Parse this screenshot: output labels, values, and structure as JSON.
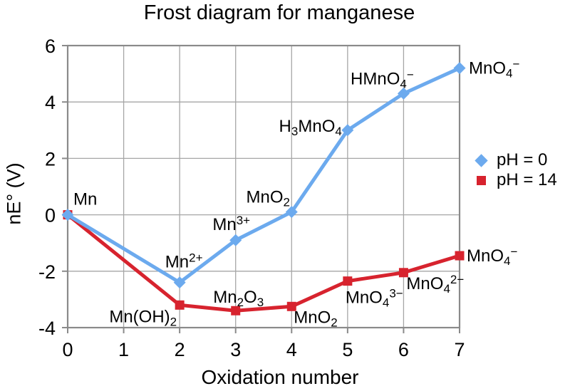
{
  "page": {
    "background": "#ffffff"
  },
  "chart_data": {
    "type": "line",
    "title": "Frost diagram for manganese",
    "xlabel": "Oxidation number",
    "ylabel": "nE° (V)",
    "xlim": [
      0,
      7
    ],
    "ylim": [
      -4,
      6
    ],
    "xticks": [
      0,
      1,
      2,
      3,
      4,
      5,
      6,
      7
    ],
    "yticks": [
      -4,
      -2,
      0,
      2,
      4,
      6
    ],
    "grid": true,
    "legend_position": "right",
    "colors": {
      "grid": "#a6a6a6",
      "border": "#8a8a8a",
      "text": "#000000",
      "background": "#ffffff"
    },
    "series": [
      {
        "name": "pH = 0",
        "color": "#6caaee",
        "marker": "diamond",
        "points": [
          {
            "x": 0,
            "y": 0,
            "label": {
              "parts": [
                {
                  "t": "Mn"
                }
              ],
              "anchor": "start",
              "dx": 8,
              "dy": -14
            }
          },
          {
            "x": 2,
            "y": -2.4,
            "label": {
              "parts": [
                {
                  "t": "Mn"
                },
                {
                  "t": "2+",
                  "sup": true
                }
              ],
              "anchor": "middle",
              "dx": 6,
              "dy": -21
            }
          },
          {
            "x": 3,
            "y": -0.9,
            "label": {
              "parts": [
                {
                  "t": "Mn"
                },
                {
                  "t": "3+",
                  "sup": true
                }
              ],
              "anchor": "middle",
              "dx": -6,
              "dy": -14
            }
          },
          {
            "x": 4,
            "y": 0.1,
            "label": {
              "parts": [
                {
                  "t": "MnO"
                },
                {
                  "t": "2",
                  "sub": true
                }
              ],
              "anchor": "middle",
              "dx": -33,
              "dy": -13
            }
          },
          {
            "x": 5,
            "y": 3.0,
            "label": {
              "parts": [
                {
                  "t": "H"
                },
                {
                  "t": "3",
                  "sub": true
                },
                {
                  "t": "MnO"
                },
                {
                  "t": "4",
                  "sub": true
                }
              ],
              "anchor": "end",
              "dx": -8,
              "dy": 2
            }
          },
          {
            "x": 6,
            "y": 4.3,
            "label": {
              "parts": [
                {
                  "t": "HMnO"
                },
                {
                  "t": "4",
                  "sub": true
                },
                {
                  "t": "−",
                  "sup": true
                }
              ],
              "anchor": "middle",
              "dx": -30,
              "dy": -13
            }
          },
          {
            "x": 7,
            "y": 5.2,
            "label": {
              "parts": [
                {
                  "t": "MnO"
                },
                {
                  "t": "4",
                  "sub": true
                },
                {
                  "t": "−",
                  "sup": true
                }
              ],
              "anchor": "start",
              "dx": 13,
              "dy": 8
            }
          }
        ]
      },
      {
        "name": "pH = 14",
        "color": "#d7232e",
        "marker": "square",
        "points": [
          {
            "x": 0,
            "y": 0
          },
          {
            "x": 2,
            "y": -3.2,
            "label": {
              "parts": [
                {
                  "t": "Mn(OH)"
                },
                {
                  "t": "2",
                  "sub": true
                }
              ],
              "anchor": "end",
              "dx": -4,
              "dy": 24
            }
          },
          {
            "x": 3,
            "y": -3.4,
            "label": {
              "parts": [
                {
                  "t": "Mn"
                },
                {
                  "t": "2",
                  "sub": true
                },
                {
                  "t": "O"
                },
                {
                  "t": "3",
                  "sub": true
                }
              ],
              "anchor": "middle",
              "dx": 4,
              "dy": -11
            }
          },
          {
            "x": 4,
            "y": -3.25,
            "label": {
              "parts": [
                {
                  "t": "MnO"
                },
                {
                  "t": "2",
                  "sub": true
                }
              ],
              "anchor": "start",
              "dx": 3,
              "dy": 23
            }
          },
          {
            "x": 5,
            "y": -2.35,
            "label": {
              "parts": [
                {
                  "t": "MnO"
                },
                {
                  "t": "4",
                  "sub": true
                },
                {
                  "t": "3−",
                  "sup": true
                }
              ],
              "anchor": "start",
              "dx": -3,
              "dy": 31
            }
          },
          {
            "x": 6,
            "y": -2.05,
            "label": {
              "parts": [
                {
                  "t": "MnO"
                },
                {
                  "t": "4",
                  "sub": true
                },
                {
                  "t": "2−",
                  "sup": true
                }
              ],
              "anchor": "start",
              "dx": 4,
              "dy": 23
            }
          },
          {
            "x": 7,
            "y": -1.45,
            "label": {
              "parts": [
                {
                  "t": "MnO"
                },
                {
                  "t": "4",
                  "sub": true
                },
                {
                  "t": "−",
                  "sup": true
                }
              ],
              "anchor": "start",
              "dx": 10,
              "dy": 8
            }
          }
        ]
      }
    ]
  }
}
